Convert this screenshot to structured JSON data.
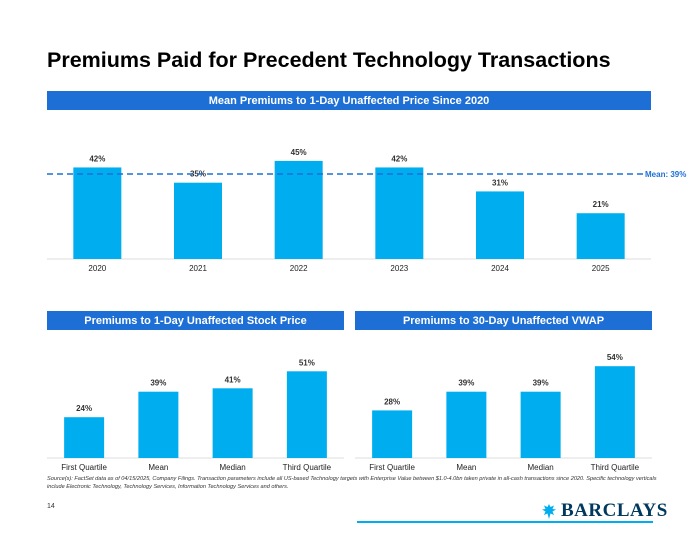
{
  "title": "Premiums Paid for Precedent Technology Transactions",
  "colors": {
    "banner": "#1d6fd6",
    "bar": "#00aeef",
    "mean_line": "#1d6fd6"
  },
  "chart_data": [
    {
      "type": "bar",
      "title": "Mean Premiums to 1-Day Unaffected Price Since 2020",
      "categories": [
        "2020",
        "2021",
        "2022",
        "2023",
        "2024",
        "2025"
      ],
      "values": [
        42,
        35,
        45,
        42,
        31,
        21
      ],
      "labels": [
        "42%",
        "35%",
        "45%",
        "42%",
        "31%",
        "21%"
      ],
      "ylim": [
        0,
        50
      ],
      "reference_line": {
        "value": 39,
        "label": "Mean: 39%"
      }
    },
    {
      "type": "bar",
      "title": "Premiums to 1-Day Unaffected Stock Price",
      "categories": [
        "First Quartile",
        "Mean",
        "Median",
        "Third Quartile"
      ],
      "values": [
        24,
        39,
        41,
        51
      ],
      "labels": [
        "24%",
        "39%",
        "41%",
        "51%"
      ],
      "ylim": [
        0,
        60
      ]
    },
    {
      "type": "bar",
      "title": "Premiums to 30-Day Unaffected VWAP",
      "categories": [
        "First Quartile",
        "Mean",
        "Median",
        "Third Quartile"
      ],
      "values": [
        28,
        39,
        39,
        54
      ],
      "labels": [
        "28%",
        "39%",
        "39%",
        "54%"
      ],
      "ylim": [
        0,
        60
      ]
    }
  ],
  "footnote": "Source(s): FactSet data as of 04/15/2025, Company Filings. Transaction parameters include all US-based Technology targets with Enterprise Value between $1.0-4.0bn taken private in all-cash transactions since 2020. Specific technology verticals include Electronic Technology, Technology Services, Information Technology Services and others.",
  "page_number": "14",
  "brand": {
    "name": "BARCLAYS",
    "logo_icon": "eagle-icon"
  }
}
